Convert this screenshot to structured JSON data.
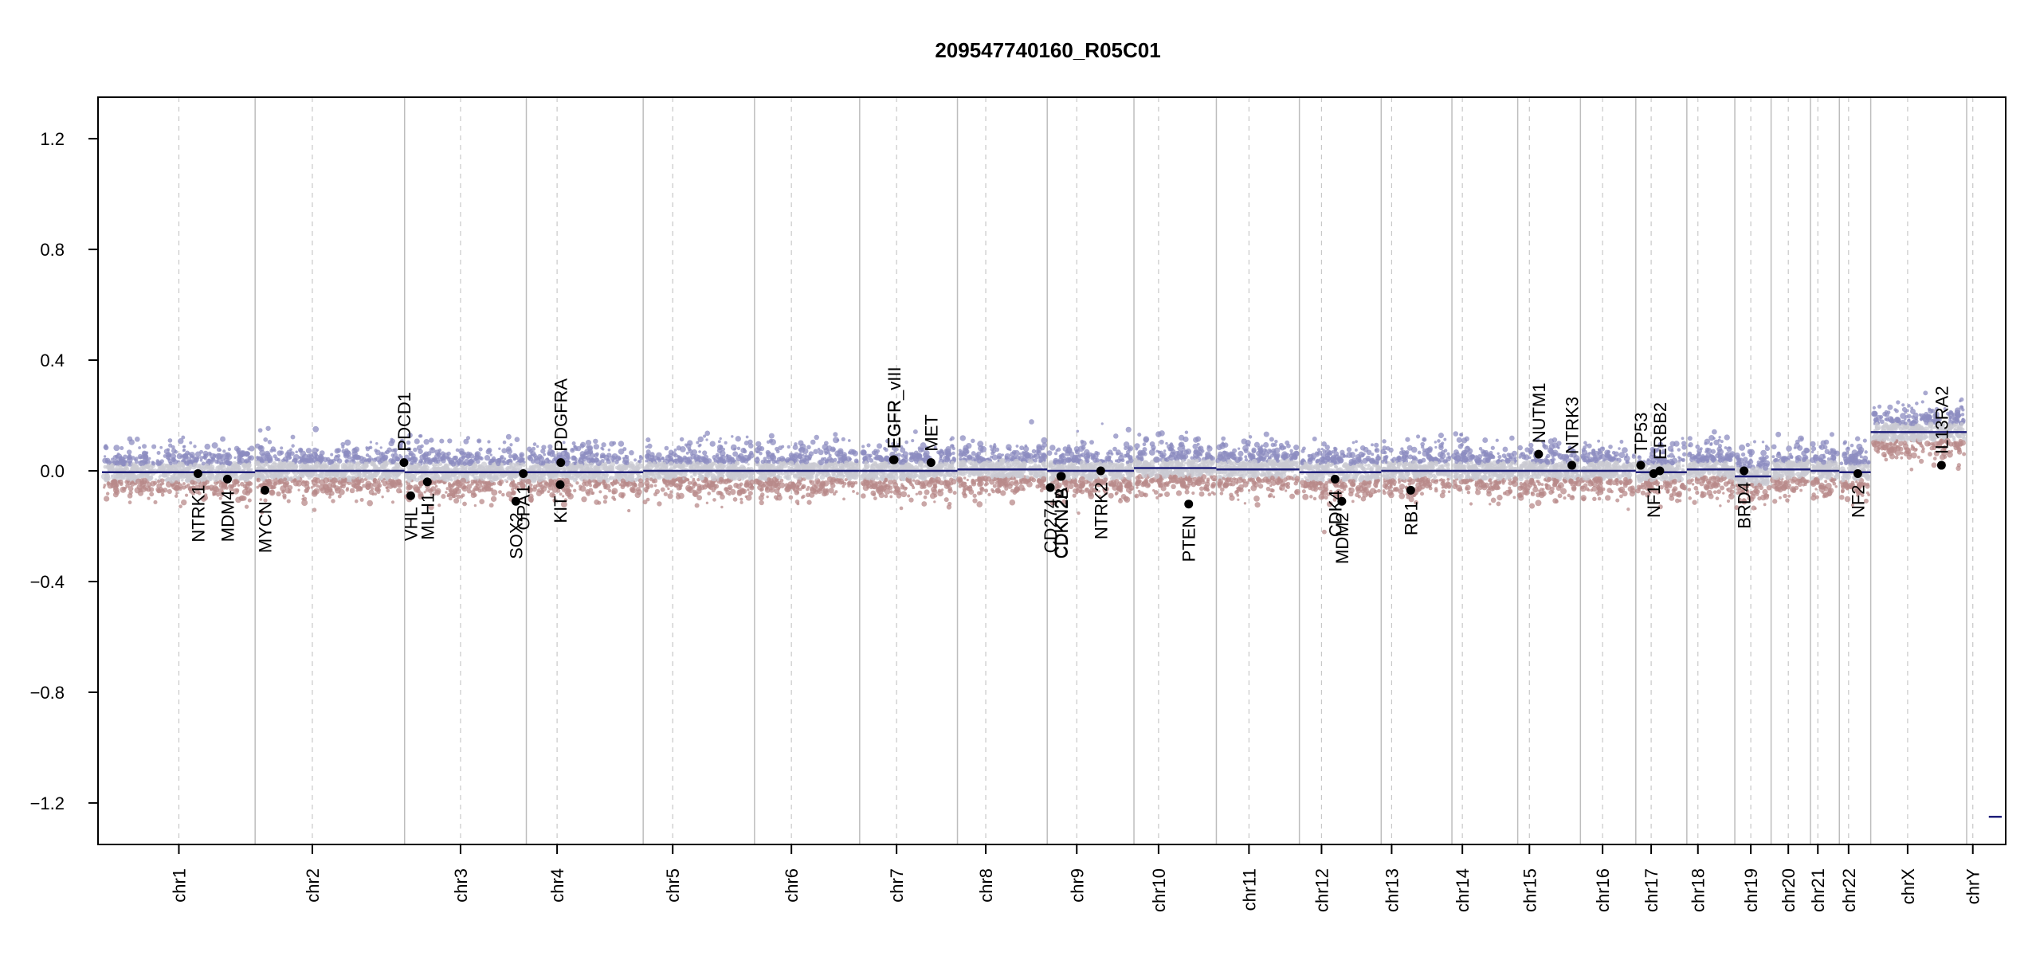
{
  "chart_data": {
    "type": "scatter",
    "title": "209547740160_R05C01",
    "xlabel": "",
    "ylabel": "",
    "ylim": [
      -1.35,
      1.35
    ],
    "yticks": [
      -1.2,
      -0.8,
      -0.4,
      0.0,
      0.4,
      0.8,
      1.2
    ],
    "ytick_labels": [
      "−1.2",
      "−0.8",
      "−0.4",
      "0.0",
      "0.4",
      "0.8",
      "1.2"
    ],
    "grid": false,
    "legend": "none",
    "colors": {
      "segment": "#1f1f7a",
      "gain": "#8c8cc0",
      "loss": "#b88a8a",
      "neutral": "#c9c9d2",
      "gene_point": "#000000",
      "boundary": "#bdbdbd",
      "centromere": "#c8c8c8"
    },
    "chromosomes": [
      {
        "name": "chr1",
        "start": 0,
        "end": 249,
        "cen": 125
      },
      {
        "name": "chr2",
        "start": 249,
        "end": 492,
        "cen": 342
      },
      {
        "name": "chr3",
        "start": 492,
        "end": 690,
        "cen": 583
      },
      {
        "name": "chr4",
        "start": 690,
        "end": 880,
        "cen": 740
      },
      {
        "name": "chr5",
        "start": 880,
        "end": 1061,
        "cen": 928
      },
      {
        "name": "chr6",
        "start": 1061,
        "end": 1232,
        "cen": 1121
      },
      {
        "name": "chr7",
        "start": 1232,
        "end": 1391,
        "cen": 1292
      },
      {
        "name": "chr8",
        "start": 1391,
        "end": 1537,
        "cen": 1437
      },
      {
        "name": "chr9",
        "start": 1537,
        "end": 1678,
        "cen": 1585
      },
      {
        "name": "chr10",
        "start": 1678,
        "end": 1812,
        "cen": 1718
      },
      {
        "name": "chr11",
        "start": 1812,
        "end": 1947,
        "cen": 1865
      },
      {
        "name": "chr12",
        "start": 1947,
        "end": 2080,
        "cen": 1983
      },
      {
        "name": "chr13",
        "start": 2080,
        "end": 2195,
        "cen": 2097
      },
      {
        "name": "chr14",
        "start": 2195,
        "end": 2302,
        "cen": 2212
      },
      {
        "name": "chr15",
        "start": 2302,
        "end": 2404,
        "cen": 2321
      },
      {
        "name": "chr16",
        "start": 2404,
        "end": 2494,
        "cen": 2440
      },
      {
        "name": "chr17",
        "start": 2494,
        "end": 2577,
        "cen": 2519
      },
      {
        "name": "chr18",
        "start": 2577,
        "end": 2655,
        "cen": 2595
      },
      {
        "name": "chr19",
        "start": 2655,
        "end": 2714,
        "cen": 2681
      },
      {
        "name": "chr20",
        "start": 2714,
        "end": 2778,
        "cen": 2742
      },
      {
        "name": "chr21",
        "start": 2778,
        "end": 2825,
        "cen": 2790
      },
      {
        "name": "chr22",
        "start": 2825,
        "end": 2876,
        "cen": 2840
      },
      {
        "name": "chrX",
        "start": 2876,
        "end": 3032,
        "cen": 2936
      },
      {
        "name": "chrY",
        "start": 3032,
        "end": 3089,
        "cen": 3042
      }
    ],
    "segments": [
      {
        "chrom": "chr1",
        "start": 0,
        "end": 249,
        "value": -0.005
      },
      {
        "chrom": "chr2",
        "start": 249,
        "end": 492,
        "value": 0.0
      },
      {
        "chrom": "chr3",
        "start": 492,
        "end": 690,
        "value": -0.005
      },
      {
        "chrom": "chr4",
        "start": 690,
        "end": 880,
        "value": -0.005
      },
      {
        "chrom": "chr5",
        "start": 880,
        "end": 1061,
        "value": 0.0
      },
      {
        "chrom": "chr6",
        "start": 1061,
        "end": 1232,
        "value": 0.0
      },
      {
        "chrom": "chr7",
        "start": 1232,
        "end": 1391,
        "value": 0.0
      },
      {
        "chrom": "chr8",
        "start": 1391,
        "end": 1537,
        "value": 0.005
      },
      {
        "chrom": "chr9",
        "start": 1537,
        "end": 1678,
        "value": 0.0
      },
      {
        "chrom": "chr10",
        "start": 1678,
        "end": 1812,
        "value": 0.01
      },
      {
        "chrom": "chr11",
        "start": 1812,
        "end": 1947,
        "value": 0.005
      },
      {
        "chrom": "chr12",
        "start": 1947,
        "end": 2080,
        "value": -0.005
      },
      {
        "chrom": "chr13",
        "start": 2080,
        "end": 2195,
        "value": 0.0
      },
      {
        "chrom": "chr14",
        "start": 2195,
        "end": 2302,
        "value": 0.0
      },
      {
        "chrom": "chr15",
        "start": 2302,
        "end": 2404,
        "value": 0.0
      },
      {
        "chrom": "chr16",
        "start": 2404,
        "end": 2494,
        "value": 0.0
      },
      {
        "chrom": "chr17",
        "start": 2494,
        "end": 2577,
        "value": -0.005
      },
      {
        "chrom": "chr18",
        "start": 2577,
        "end": 2655,
        "value": 0.005
      },
      {
        "chrom": "chr19",
        "start": 2655,
        "end": 2714,
        "value": -0.02
      },
      {
        "chrom": "chr20",
        "start": 2714,
        "end": 2778,
        "value": 0.005
      },
      {
        "chrom": "chr21",
        "start": 2778,
        "end": 2825,
        "value": 0.0
      },
      {
        "chrom": "chr22",
        "start": 2825,
        "end": 2876,
        "value": -0.005
      },
      {
        "chrom": "chrX",
        "start": 2876,
        "end": 3032,
        "value": 0.14
      },
      {
        "chrom": "chrY",
        "start": 3032,
        "end": 3089,
        "value": -1.25
      }
    ],
    "genes": [
      {
        "name": "NTRK1",
        "pos": 156,
        "value": -0.01,
        "label": "below"
      },
      {
        "name": "MDM4",
        "pos": 204,
        "value": -0.03,
        "label": "below"
      },
      {
        "name": "MYCN",
        "pos": 265,
        "value": -0.07,
        "label": "below"
      },
      {
        "name": "PDCD1",
        "pos": 491,
        "value": 0.03,
        "label": "above"
      },
      {
        "name": "VHL",
        "pos": 502,
        "value": -0.09,
        "label": "below"
      },
      {
        "name": "MLH1",
        "pos": 529,
        "value": -0.04,
        "label": "below"
      },
      {
        "name": "SOX2",
        "pos": 673,
        "value": -0.11,
        "label": "below"
      },
      {
        "name": "OPA1",
        "pos": 685,
        "value": -0.01,
        "label": "below"
      },
      {
        "name": "KIT",
        "pos": 745,
        "value": -0.05,
        "label": "below"
      },
      {
        "name": "PDGFRA",
        "pos": 746,
        "value": 0.03,
        "label": "above"
      },
      {
        "name": "EGFR",
        "pos": 1287,
        "value": 0.04,
        "label": "above"
      },
      {
        "name": "EGFR_vIII",
        "pos": 1288,
        "value": 0.04,
        "label": "above"
      },
      {
        "name": "MET",
        "pos": 1348,
        "value": 0.03,
        "label": "above"
      },
      {
        "name": "CD274",
        "pos": 1542,
        "value": -0.06,
        "label": "below"
      },
      {
        "name": "CDKN2A",
        "pos": 1559,
        "value": -0.02,
        "label": "below"
      },
      {
        "name": "CDKN2B",
        "pos": 1560,
        "value": -0.02,
        "label": "below"
      },
      {
        "name": "NTRK2",
        "pos": 1624,
        "value": 0.0,
        "label": "below"
      },
      {
        "name": "PTEN",
        "pos": 1767,
        "value": -0.12,
        "label": "below"
      },
      {
        "name": "CDK4",
        "pos": 2005,
        "value": -0.03,
        "label": "below"
      },
      {
        "name": "MDM2",
        "pos": 2016,
        "value": -0.11,
        "label": "below"
      },
      {
        "name": "RB1",
        "pos": 2128,
        "value": -0.07,
        "label": "below"
      },
      {
        "name": "NUTM1",
        "pos": 2336,
        "value": 0.06,
        "label": "above"
      },
      {
        "name": "NTRK3",
        "pos": 2390,
        "value": 0.02,
        "label": "above"
      },
      {
        "name": "TP53",
        "pos": 2502,
        "value": 0.02,
        "label": "above"
      },
      {
        "name": "NF1",
        "pos": 2523,
        "value": -0.01,
        "label": "below"
      },
      {
        "name": "ERBB2",
        "pos": 2533,
        "value": 0.0,
        "label": "above"
      },
      {
        "name": "BRD4",
        "pos": 2670,
        "value": 0.0,
        "label": "below"
      },
      {
        "name": "NF2",
        "pos": 2855,
        "value": -0.01,
        "label": "below"
      },
      {
        "name": "IL13RA2",
        "pos": 2991,
        "value": 0.02,
        "label": "above"
      }
    ]
  }
}
